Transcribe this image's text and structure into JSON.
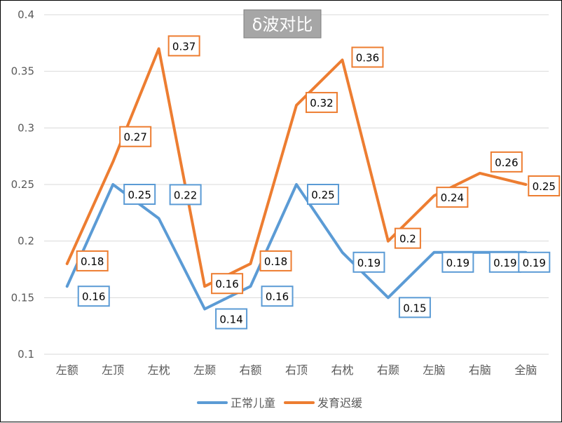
{
  "chart_data": {
    "type": "line",
    "title": "δ波对比",
    "categories": [
      "左额",
      "左顶",
      "左枕",
      "左颞",
      "右额",
      "右顶",
      "右枕",
      "右颞",
      "左脑",
      "右脑",
      "全脑"
    ],
    "y_ticks": [
      "0.1",
      "0.15",
      "0.2",
      "0.25",
      "0.3",
      "0.35",
      "0.4"
    ],
    "ylim": [
      0.1,
      0.4
    ],
    "grid": "horizontal",
    "legend_position": "bottom",
    "series": [
      {
        "name": "正常儿童",
        "color": "#5B9BD5",
        "values": [
          0.16,
          0.25,
          0.22,
          0.14,
          0.16,
          0.25,
          0.19,
          0.15,
          0.19,
          0.19,
          0.19
        ],
        "labels": [
          "0.16",
          "0.25",
          "0.22",
          "0.14",
          "0.16",
          "0.25",
          "0.19",
          "0.15",
          "0.19",
          "0.19",
          "0.19"
        ]
      },
      {
        "name": "发育迟缓",
        "color": "#ED7D31",
        "values": [
          0.18,
          0.27,
          0.37,
          0.16,
          0.18,
          0.32,
          0.36,
          0.2,
          0.24,
          0.26,
          0.25
        ],
        "labels": [
          "0.18",
          "0.27",
          "0.37",
          "0.16",
          "0.18",
          "0.32",
          "0.36",
          "0.2",
          "0.24",
          "0.26",
          "0.25"
        ]
      }
    ]
  }
}
